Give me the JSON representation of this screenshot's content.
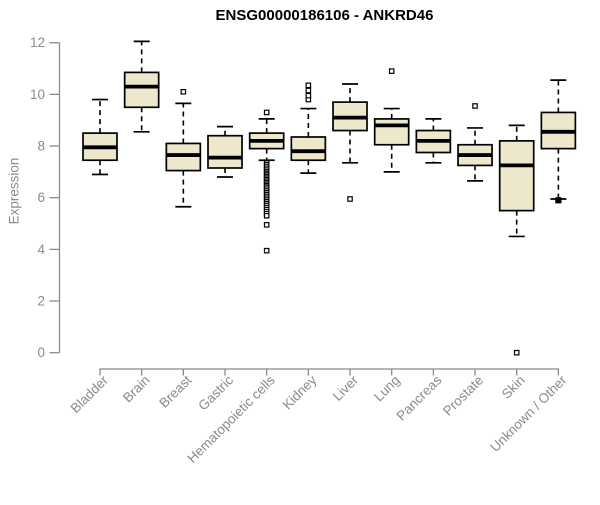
{
  "title": "ENSG00000186106 - ANKRD46",
  "chart_data": {
    "type": "boxplot",
    "title": "ENSG00000186106 - ANKRD46",
    "xlabel": "",
    "ylabel": "Expression",
    "ylim": [
      0,
      12
    ],
    "yticks": [
      0,
      2,
      4,
      6,
      8,
      10,
      12
    ],
    "grid": false,
    "legend": "none",
    "categories": [
      "Bladder",
      "Brain",
      "Breast",
      "Gastric",
      "Hematopoietic cells",
      "Kidney",
      "Liver",
      "Lung",
      "Pancreas",
      "Prostate",
      "Skin",
      "Unknown / Other"
    ],
    "series": [
      {
        "category": "Bladder",
        "whisker_low": 6.9,
        "q1": 7.45,
        "median": 7.95,
        "q3": 8.5,
        "whisker_high": 9.8,
        "outliers": [],
        "outliers_solid": []
      },
      {
        "category": "Brain",
        "whisker_low": 8.55,
        "q1": 9.5,
        "median": 10.3,
        "q3": 10.85,
        "whisker_high": 12.05,
        "outliers": [],
        "outliers_solid": []
      },
      {
        "category": "Breast",
        "whisker_low": 5.65,
        "q1": 7.05,
        "median": 7.65,
        "q3": 8.1,
        "whisker_high": 9.65,
        "outliers": [
          10.1
        ],
        "outliers_solid": []
      },
      {
        "category": "Gastric",
        "whisker_low": 6.8,
        "q1": 7.15,
        "median": 7.55,
        "q3": 8.4,
        "whisker_high": 8.75,
        "outliers": [],
        "outliers_solid": []
      },
      {
        "category": "Hematopoietic cells",
        "whisker_low": 7.45,
        "q1": 7.9,
        "median": 8.2,
        "q3": 8.5,
        "whisker_high": 9.05,
        "outliers": [
          9.3,
          7.35,
          7.28,
          7.21,
          7.14,
          7.07,
          7.0,
          6.94,
          6.88,
          6.82,
          6.76,
          6.7,
          6.64,
          6.58,
          6.52,
          6.46,
          6.4,
          6.33,
          6.26,
          6.19,
          6.12,
          6.05,
          5.98,
          5.91,
          5.84,
          5.77,
          5.7,
          5.62,
          5.54,
          5.46,
          5.38,
          5.3,
          4.95,
          3.95
        ],
        "outliers_solid": []
      },
      {
        "category": "Kidney",
        "whisker_low": 6.95,
        "q1": 7.45,
        "median": 7.8,
        "q3": 8.35,
        "whisker_high": 9.45,
        "outliers": [
          9.8,
          9.95,
          10.15,
          10.35
        ],
        "outliers_solid": []
      },
      {
        "category": "Liver",
        "whisker_low": 7.35,
        "q1": 8.6,
        "median": 9.1,
        "q3": 9.7,
        "whisker_high": 10.4,
        "outliers": [
          5.95
        ],
        "outliers_solid": []
      },
      {
        "category": "Lung",
        "whisker_low": 7.0,
        "q1": 8.05,
        "median": 8.8,
        "q3": 9.05,
        "whisker_high": 9.45,
        "outliers": [
          10.9
        ],
        "outliers_solid": []
      },
      {
        "category": "Pancreas",
        "whisker_low": 7.35,
        "q1": 7.75,
        "median": 8.2,
        "q3": 8.6,
        "whisker_high": 9.05,
        "outliers": [],
        "outliers_solid": []
      },
      {
        "category": "Prostate",
        "whisker_low": 6.65,
        "q1": 7.25,
        "median": 7.65,
        "q3": 8.05,
        "whisker_high": 8.7,
        "outliers": [
          9.55
        ],
        "outliers_solid": []
      },
      {
        "category": "Skin",
        "whisker_low": 4.5,
        "q1": 5.5,
        "median": 7.25,
        "q3": 8.2,
        "whisker_high": 8.8,
        "outliers": [
          0.0
        ],
        "outliers_solid": []
      },
      {
        "category": "Unknown / Other",
        "whisker_low": 5.95,
        "q1": 7.9,
        "median": 8.55,
        "q3": 9.3,
        "whisker_high": 10.55,
        "outliers": [],
        "outliers_solid": [
          5.9
        ]
      }
    ],
    "colors": {
      "box_fill": "#EDE8CC",
      "box_border": "#000000",
      "median": "#000000",
      "whisker": "#000000",
      "axis": "#8B8B8B",
      "tick_label": "#8B8B8B",
      "title": "#000000",
      "background": "#FFFFFF"
    }
  }
}
